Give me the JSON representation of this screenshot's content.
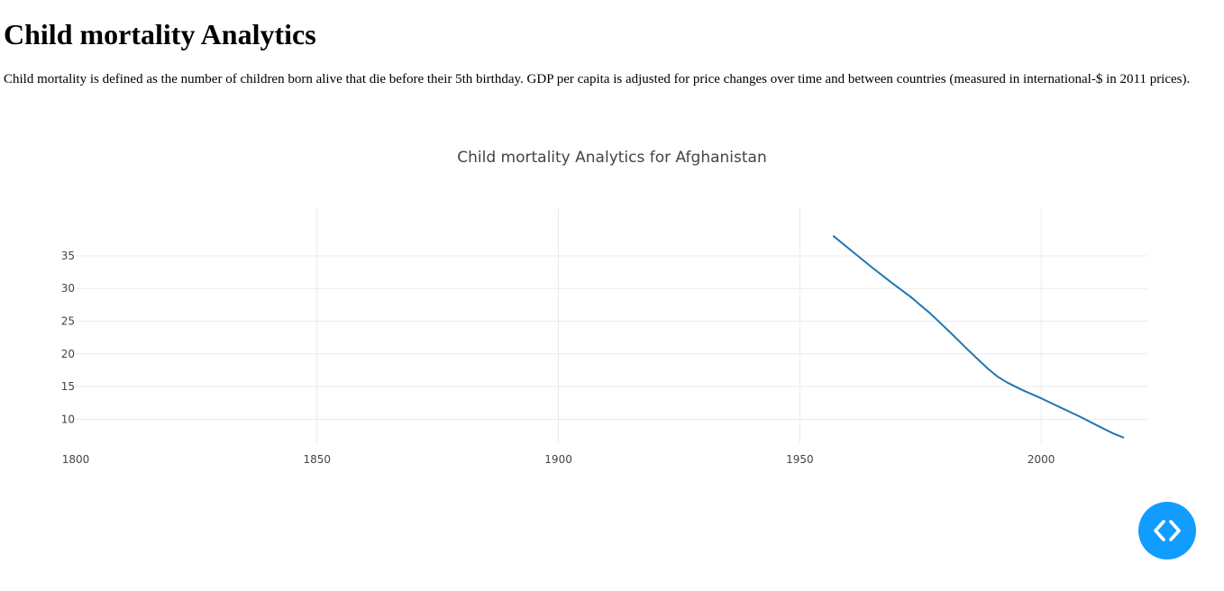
{
  "page": {
    "title": "Child mortality Analytics",
    "description": "Child mortality is defined as the number of children born alive that die before their 5th birthday. GDP per capita is adjusted for price changes over time and between countries (measured in international-$ in 2011 prices)."
  },
  "chart_data": {
    "type": "line",
    "title": "Child mortality Analytics for Afghanistan",
    "xlabel": "",
    "ylabel": "",
    "xlim": [
      1800,
      2022
    ],
    "ylim": [
      6.6,
      42.3
    ],
    "x_ticks": [
      1800,
      1850,
      1900,
      1950,
      2000
    ],
    "y_ticks": [
      10,
      15,
      20,
      25,
      30,
      35
    ],
    "grid": true,
    "color": "#1f77b4",
    "series": [
      {
        "x": [
          1957,
          1961,
          1965,
          1969,
          1973,
          1977,
          1981,
          1985,
          1989,
          1991,
          1993,
          1996,
          2000,
          2004,
          2008,
          2012,
          2015,
          2017
        ],
        "values": [
          38.0,
          35.6,
          33.2,
          30.9,
          28.7,
          26.2,
          23.4,
          20.5,
          17.7,
          16.5,
          15.6,
          14.5,
          13.2,
          11.8,
          10.4,
          8.9,
          7.8,
          7.2
        ]
      }
    ]
  },
  "fab": {
    "icon": "code-brackets-icon",
    "color": "#119dff"
  }
}
